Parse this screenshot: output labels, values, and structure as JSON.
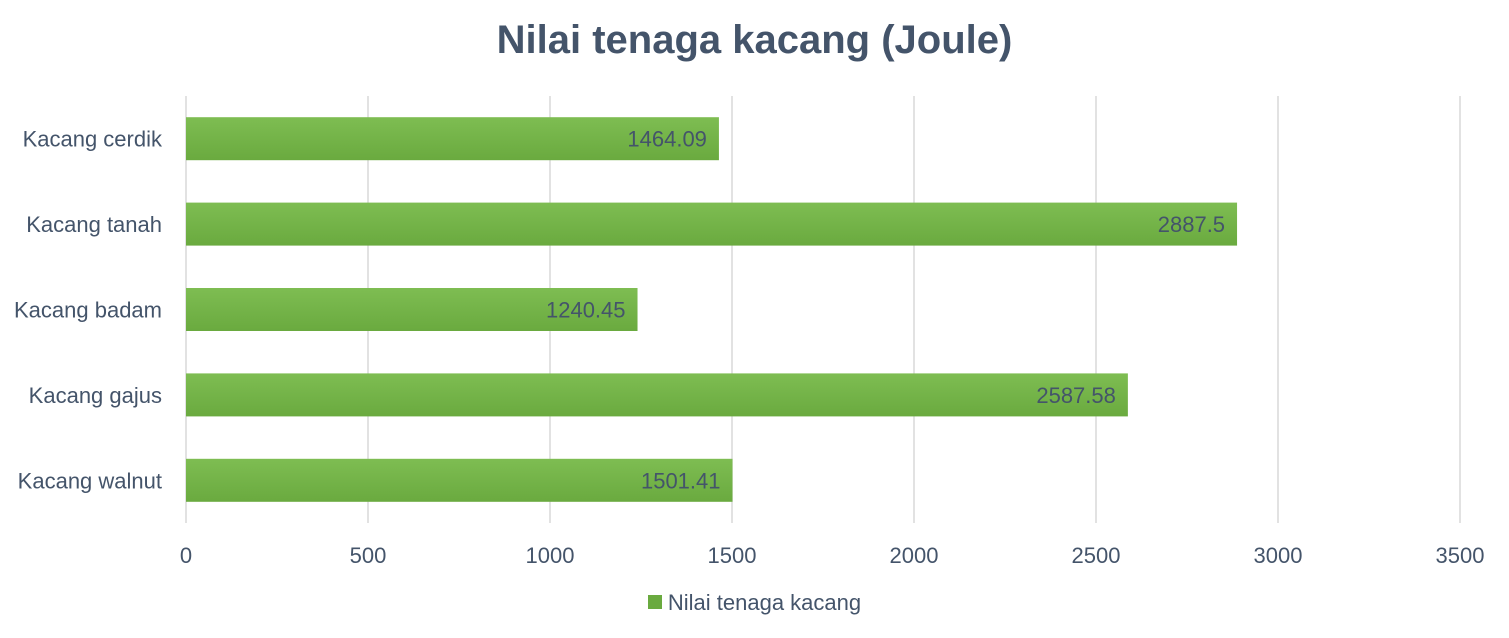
{
  "colors": {
    "bar": "#6aaa3f",
    "bar_light": "#7ebd52",
    "grid": "#d9d9d9",
    "text": "#44546a"
  },
  "chart_data": {
    "type": "bar",
    "orientation": "horizontal",
    "title": "Nilai tenaga kacang (Joule)",
    "categories": [
      "Kacang cerdik",
      "Kacang tanah",
      "Kacang badam",
      "Kacang gajus",
      "Kacang walnut"
    ],
    "series": [
      {
        "name": "Nilai tenaga kacang",
        "values": [
          1464.09,
          2887.5,
          1240.45,
          2587.58,
          1501.41
        ],
        "labels": [
          "1464.09",
          "2887.5",
          "1240.45",
          "2587.58",
          "1501.41"
        ]
      }
    ],
    "xlim": [
      0,
      3500
    ],
    "x_ticks": [
      0,
      500,
      1000,
      1500,
      2000,
      2500,
      3000,
      3500
    ],
    "grid": "vertical",
    "legend": "bottom"
  }
}
